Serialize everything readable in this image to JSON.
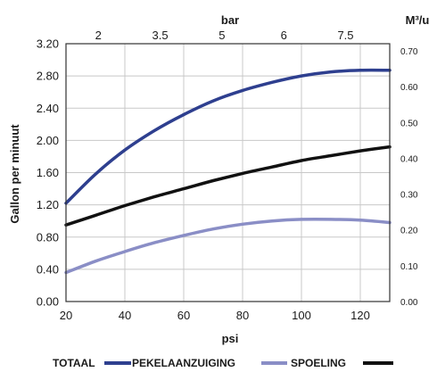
{
  "chart_data": {
    "type": "line",
    "xlabel": "psi",
    "ylabel": "Gallon per minuut",
    "x2label": "bar",
    "y2label": "M³/u",
    "xlim": [
      20,
      130
    ],
    "ylim": [
      0,
      3.2
    ],
    "y2lim": [
      0,
      0.72
    ],
    "grid": true,
    "legend_position": "bottom",
    "x_ticks": [
      "20",
      "40",
      "60",
      "80",
      "100",
      "120"
    ],
    "y_ticks": [
      "0.00",
      "0.40",
      "0.80",
      "1.20",
      "1.60",
      "2.00",
      "2.40",
      "2.80",
      "3.20"
    ],
    "x2_ticks": [
      {
        "label": "2",
        "psi": 31
      },
      {
        "label": "3.5",
        "psi": 52
      },
      {
        "label": "5",
        "psi": 73
      },
      {
        "label": "6",
        "psi": 94
      },
      {
        "label": "7.5",
        "psi": 115
      }
    ],
    "y2_ticks": [
      "0.00",
      "0.10",
      "0.20",
      "0.30",
      "0.40",
      "0.50",
      "0.60",
      "0.70"
    ],
    "series": [
      {
        "name": "PEKELAANZUIGING",
        "color": "#2e3f8f",
        "x": [
          20,
          30,
          40,
          50,
          60,
          70,
          80,
          90,
          100,
          110,
          120,
          130
        ],
        "y": [
          1.22,
          1.58,
          1.88,
          2.12,
          2.32,
          2.49,
          2.62,
          2.72,
          2.8,
          2.85,
          2.87,
          2.87
        ]
      },
      {
        "name": "SPOELING",
        "color": "#8a8ec6",
        "x": [
          20,
          30,
          40,
          50,
          60,
          70,
          80,
          90,
          100,
          110,
          120,
          130
        ],
        "y": [
          0.36,
          0.5,
          0.62,
          0.73,
          0.82,
          0.9,
          0.96,
          1.0,
          1.02,
          1.02,
          1.01,
          0.98
        ]
      },
      {
        "name": "TOTAAL",
        "color": "#111111",
        "x": [
          20,
          30,
          40,
          50,
          60,
          70,
          80,
          90,
          100,
          110,
          120,
          130
        ],
        "y": [
          0.95,
          1.07,
          1.19,
          1.3,
          1.4,
          1.5,
          1.59,
          1.67,
          1.75,
          1.81,
          1.87,
          1.92
        ]
      }
    ]
  }
}
